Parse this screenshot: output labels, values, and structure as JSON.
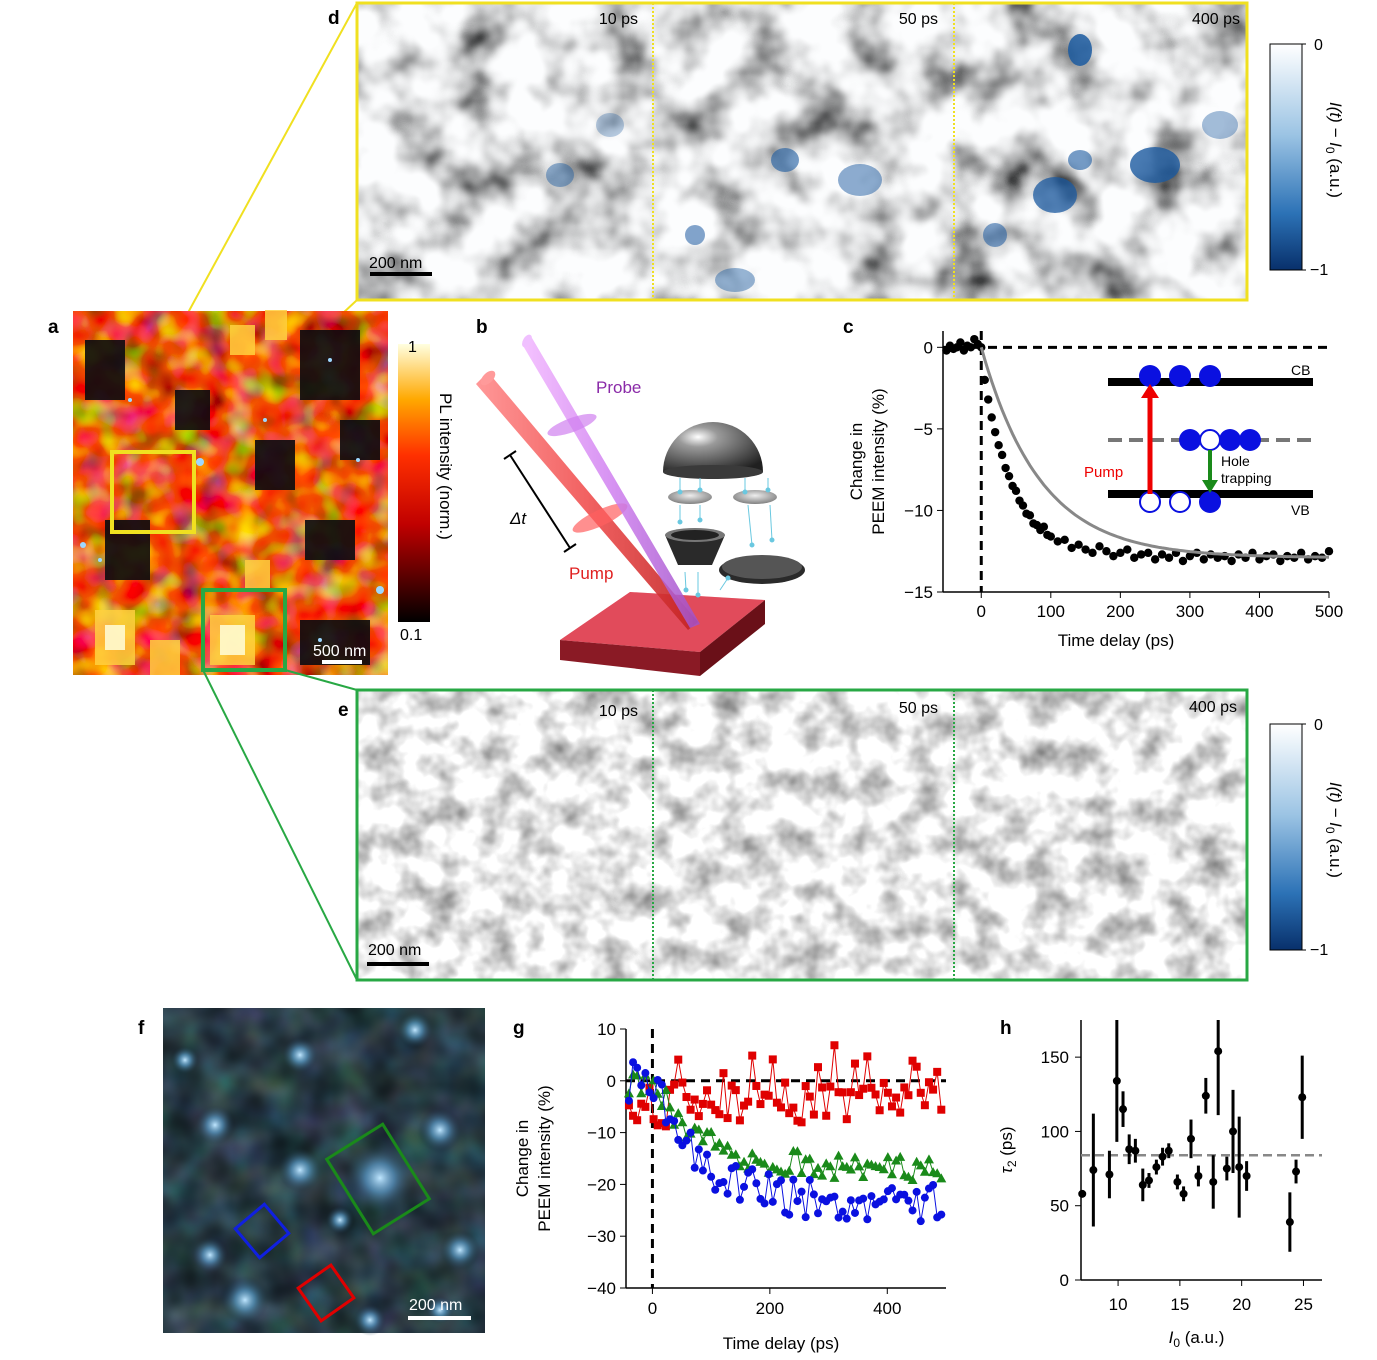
{
  "panels": {
    "a": {
      "label": "a",
      "scale_bar": "500 nm",
      "colorbar": {
        "max": "1",
        "min": "0.1",
        "title": "PL intensity (norm.)"
      }
    },
    "b": {
      "label": "b",
      "probe_label": "Probe",
      "pump_label": "Pump",
      "delay_label": "Δt"
    },
    "c": {
      "label": "c",
      "inset": {
        "cb": "CB",
        "vb": "VB",
        "pump": "Pump",
        "hole_trapping_1": "Hole",
        "hole_trapping_2": "trapping"
      }
    },
    "d": {
      "label": "d",
      "frames": [
        "10 ps",
        "50 ps",
        "400 ps"
      ],
      "scale_bar": "200 nm",
      "colorbar": {
        "max": "0",
        "min": "−1",
        "title_main": "I(t) − I",
        "title_sub": "0",
        "title_unit": " (a.u.)"
      }
    },
    "e": {
      "label": "e",
      "frames": [
        "10 ps",
        "50 ps",
        "400 ps"
      ],
      "scale_bar": "200 nm",
      "colorbar": {
        "max": "0",
        "min": "−1",
        "title_main": "I(t) − I",
        "title_sub": "0",
        "title_unit": " (a.u.)"
      }
    },
    "f": {
      "label": "f",
      "scale_bar": "200 nm"
    },
    "g": {
      "label": "g"
    },
    "h": {
      "label": "h"
    }
  },
  "colors": {
    "yellow_box": "#f0e020",
    "green_box": "#28a844",
    "red": "#e00000",
    "blue": "#0a10e0",
    "green": "#1a8a1a",
    "pl_dark": "#1a0000",
    "pl_red": "#d01000",
    "pl_bright": "#fff7a0"
  },
  "chart_data": [
    {
      "id": "c",
      "type": "scatter",
      "title": "",
      "xlabel": "Time delay (ps)",
      "ylabel_line1": "Change in",
      "ylabel_line2": "PEEM intensity (%)",
      "xlim": [
        -55,
        500
      ],
      "ylim": [
        -15,
        1
      ],
      "xticks": [
        0,
        100,
        200,
        300,
        400,
        500
      ],
      "yticks": [
        0,
        -5,
        -10,
        -15
      ],
      "series": [
        {
          "name": "data",
          "x": [
            -50,
            -45,
            -40,
            -35,
            -30,
            -25,
            -20,
            -15,
            -10,
            -5,
            0,
            5,
            10,
            15,
            20,
            25,
            30,
            35,
            40,
            45,
            50,
            55,
            60,
            65,
            70,
            75,
            80,
            85,
            90,
            95,
            100,
            110,
            120,
            130,
            140,
            150,
            160,
            170,
            180,
            190,
            200,
            210,
            220,
            230,
            240,
            250,
            260,
            270,
            280,
            290,
            300,
            310,
            320,
            330,
            340,
            350,
            360,
            370,
            380,
            390,
            400,
            410,
            420,
            430,
            440,
            450,
            460,
            470,
            480,
            490,
            500
          ],
          "y": [
            -0.2,
            0.1,
            -0.1,
            0.0,
            0.3,
            -0.2,
            0.1,
            0.0,
            0.5,
            0.2,
            0.0,
            -2.0,
            -3.2,
            -4.3,
            -5.2,
            -6.0,
            -6.6,
            -7.4,
            -7.9,
            -8.5,
            -8.8,
            -9.4,
            -9.7,
            -10.2,
            -10.3,
            -10.8,
            -10.9,
            -11.2,
            -11.0,
            -11.5,
            -11.6,
            -11.9,
            -11.8,
            -12.3,
            -12.1,
            -12.4,
            -12.6,
            -12.2,
            -12.5,
            -12.8,
            -12.6,
            -12.4,
            -12.9,
            -12.7,
            -12.6,
            -13.0,
            -12.7,
            -12.9,
            -12.6,
            -13.1,
            -12.8,
            -12.6,
            -13.0,
            -12.7,
            -12.9,
            -12.8,
            -13.1,
            -12.7,
            -12.9,
            -12.6,
            -13.0,
            -12.8,
            -12.7,
            -13.1,
            -12.8,
            -12.9,
            -12.6,
            -13.0,
            -12.8,
            -12.9,
            -12.5
          ]
        },
        {
          "name": "fit",
          "type": "line",
          "tau_ps": 85,
          "amplitude": -12.9
        }
      ],
      "reference_lines": [
        {
          "axis": "y",
          "value": 0,
          "style": "dashed"
        },
        {
          "axis": "x",
          "value": 0,
          "style": "dashed"
        }
      ]
    },
    {
      "id": "g",
      "type": "line",
      "xlabel": "Time delay (ps)",
      "ylabel_line1": "Change in",
      "ylabel_line2": "PEEM intensity (%)",
      "xlim": [
        -45,
        500
      ],
      "ylim": [
        -40,
        10
      ],
      "xticks": [
        0,
        200,
        400
      ],
      "yticks": [
        10,
        0,
        -10,
        -20,
        -30,
        -40
      ],
      "reference_lines": [
        {
          "axis": "y",
          "value": 0,
          "style": "dashed"
        },
        {
          "axis": "x",
          "value": 0,
          "style": "dashed"
        }
      ],
      "series": [
        {
          "name": "red region",
          "color": "#e00000",
          "marker": "square",
          "asymptote": 0,
          "tau_ps": 85,
          "noise": 5.5
        },
        {
          "name": "green region",
          "color": "#1a8a1a",
          "marker": "triangle",
          "asymptote": -17,
          "tau_ps": 85,
          "noise": 2.5
        },
        {
          "name": "blue region",
          "color": "#0a10e0",
          "marker": "circle",
          "asymptote": -24,
          "tau_ps": 85,
          "noise": 4.0
        }
      ]
    },
    {
      "id": "h",
      "type": "scatter",
      "xlabel_main": "I",
      "xlabel_sub": "0",
      "xlabel_unit": " (a.u.)",
      "ylabel_main": "τ",
      "ylabel_sub": "2",
      "ylabel_unit": " (ps)",
      "xlim": [
        7,
        26.5
      ],
      "ylim": [
        0,
        175
      ],
      "xticks": [
        10,
        15,
        20,
        25
      ],
      "yticks": [
        0,
        50,
        100,
        150
      ],
      "reference_lines": [
        {
          "axis": "y",
          "value": 84,
          "style": "dashed"
        }
      ],
      "points": [
        {
          "x": 7.1,
          "y": 58,
          "err": 0
        },
        {
          "x": 8.0,
          "y": 74,
          "err": 38
        },
        {
          "x": 9.3,
          "y": 71,
          "err": 16
        },
        {
          "x": 9.9,
          "y": 134,
          "err": 41
        },
        {
          "x": 10.4,
          "y": 115,
          "err": 12
        },
        {
          "x": 10.9,
          "y": 88,
          "err": 10
        },
        {
          "x": 11.4,
          "y": 87,
          "err": 8
        },
        {
          "x": 12.0,
          "y": 64,
          "err": 11
        },
        {
          "x": 12.5,
          "y": 67,
          "err": 5
        },
        {
          "x": 13.1,
          "y": 76,
          "err": 5
        },
        {
          "x": 13.6,
          "y": 83,
          "err": 6
        },
        {
          "x": 14.1,
          "y": 87,
          "err": 5
        },
        {
          "x": 14.8,
          "y": 66,
          "err": 5
        },
        {
          "x": 15.3,
          "y": 58,
          "err": 5
        },
        {
          "x": 15.9,
          "y": 95,
          "err": 13
        },
        {
          "x": 16.5,
          "y": 70,
          "err": 7
        },
        {
          "x": 17.1,
          "y": 124,
          "err": 12
        },
        {
          "x": 17.7,
          "y": 66,
          "err": 18
        },
        {
          "x": 18.1,
          "y": 154,
          "err": 43
        },
        {
          "x": 18.8,
          "y": 75,
          "err": 8
        },
        {
          "x": 19.3,
          "y": 100,
          "err": 28
        },
        {
          "x": 19.8,
          "y": 76,
          "err": 34
        },
        {
          "x": 20.4,
          "y": 70,
          "err": 10
        },
        {
          "x": 23.9,
          "y": 39,
          "err": 20
        },
        {
          "x": 24.4,
          "y": 73,
          "err": 8
        },
        {
          "x": 24.9,
          "y": 123,
          "err": 28
        }
      ]
    }
  ]
}
